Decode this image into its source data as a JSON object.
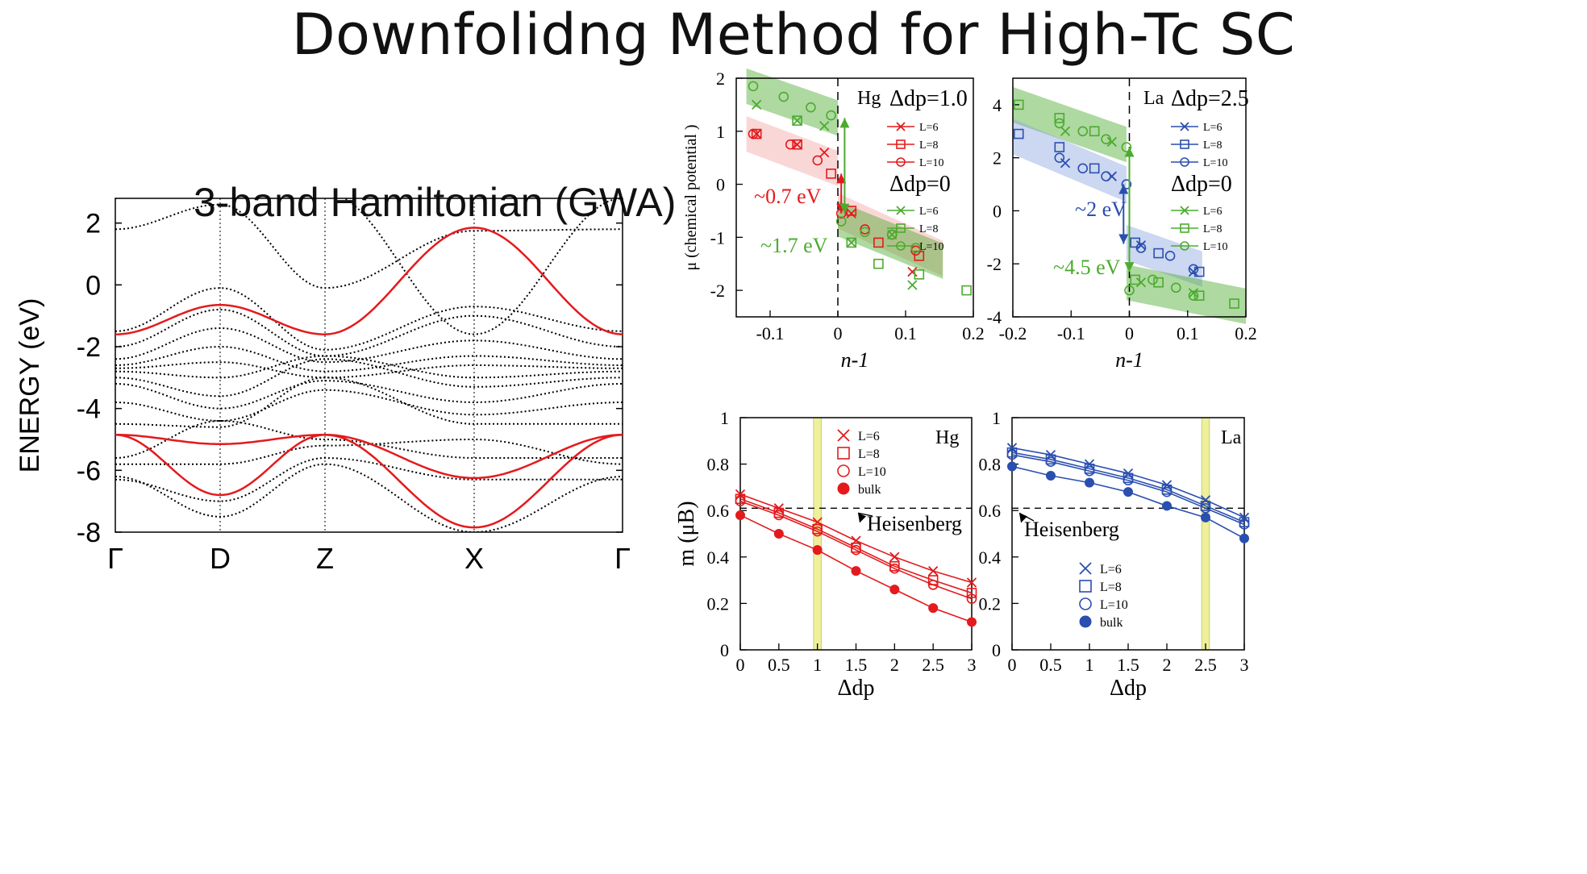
{
  "page": {
    "title": "Downfolidng Method for High-Tc SC"
  },
  "chart_data": [
    {
      "type": "line",
      "title": "3-band Hamiltonian (GWA)",
      "ylabel": "ENERGY (eV)",
      "xlabel": "",
      "k_points": [
        "Γ",
        "D",
        "Z",
        "X",
        "Γ"
      ],
      "ylim": [
        -8,
        2.8
      ],
      "yticks": [
        2,
        0,
        -2,
        -4,
        -6,
        -8
      ],
      "red_bands": [
        {
          "name": "",
          "k": [
            0,
            1,
            2,
            3,
            4
          ],
          "values": [
            -1.6,
            -0.65,
            -1.6,
            1.85,
            -1.6
          ]
        },
        {
          "name": "",
          "k": [
            0,
            1,
            2,
            3,
            4
          ],
          "values": [
            -4.85,
            -5.15,
            -4.85,
            -6.25,
            -4.85
          ]
        },
        {
          "name": "",
          "k": [
            0,
            1,
            2,
            3,
            4
          ],
          "values": [
            -4.85,
            -6.8,
            -4.85,
            -7.85,
            -4.85
          ]
        }
      ],
      "dotted_bands": [
        {
          "k": [
            0,
            1,
            2,
            3,
            4
          ],
          "values": [
            2.8,
            4.5,
            3.0,
            -1.6,
            2.8
          ]
        },
        {
          "k": [
            0,
            1,
            2,
            3,
            4
          ],
          "values": [
            1.8,
            2.6,
            -0.1,
            1.75,
            1.8
          ]
        },
        {
          "k": [
            0,
            1,
            2,
            3,
            4
          ],
          "values": [
            -1.5,
            -0.1,
            -2.1,
            -0.7,
            -1.5
          ]
        },
        {
          "k": [
            0,
            1,
            2,
            3,
            4
          ],
          "values": [
            -2.0,
            -0.8,
            -2.3,
            -1.0,
            -2.0
          ]
        },
        {
          "k": [
            0,
            1,
            2,
            3,
            4
          ],
          "values": [
            -2.4,
            -1.4,
            -2.5,
            -1.8,
            -2.4
          ]
        },
        {
          "k": [
            0,
            1,
            2,
            3,
            4
          ],
          "values": [
            -2.6,
            -2.0,
            -2.8,
            -2.3,
            -2.6
          ]
        },
        {
          "k": [
            0,
            1,
            2,
            3,
            4
          ],
          "values": [
            -2.7,
            -2.5,
            -3.0,
            -2.6,
            -2.7
          ]
        },
        {
          "k": [
            0,
            1,
            2,
            3,
            4
          ],
          "values": [
            -2.8,
            -3.0,
            -2.3,
            -3.0,
            -2.8
          ]
        },
        {
          "k": [
            0,
            1,
            2,
            3,
            4
          ],
          "values": [
            -3.0,
            -3.6,
            -2.4,
            -3.3,
            -3.0
          ]
        },
        {
          "k": [
            0,
            1,
            2,
            3,
            4
          ],
          "values": [
            -3.2,
            -4.0,
            -3.1,
            -3.8,
            -3.2
          ]
        },
        {
          "k": [
            0,
            1,
            2,
            3,
            4
          ],
          "values": [
            -3.8,
            -4.4,
            -3.4,
            -4.2,
            -3.8
          ]
        },
        {
          "k": [
            0,
            1,
            2,
            3,
            4
          ],
          "values": [
            -4.5,
            -4.6,
            -3.0,
            -4.5,
            -4.5
          ]
        },
        {
          "k": [
            0,
            1,
            2,
            3,
            4
          ],
          "values": [
            -5.6,
            -4.4,
            -5.0,
            -5.6,
            -5.6
          ]
        },
        {
          "k": [
            0,
            1,
            2,
            3,
            4
          ],
          "values": [
            -5.8,
            -5.8,
            -5.2,
            -5.0,
            -5.8
          ]
        },
        {
          "k": [
            0,
            1,
            2,
            3,
            4
          ],
          "values": [
            -6.3,
            -7.0,
            -5.6,
            -6.3,
            -6.3
          ]
        },
        {
          "k": [
            0,
            1,
            2,
            3,
            4
          ],
          "values": [
            -6.2,
            -7.5,
            -5.8,
            -8.0,
            -6.2
          ]
        }
      ]
    },
    {
      "type": "scatter",
      "panel": "Hg",
      "ylabel": "μ (chemical potential )",
      "xlabel": "n-1",
      "xlim": [
        -0.15,
        0.2
      ],
      "ylim": [
        -2.5,
        2
      ],
      "xticks": [
        "-0.1",
        "0",
        "0.1",
        "0.2"
      ],
      "yticks": [
        "2",
        "1",
        "0",
        "-1",
        "-2"
      ],
      "legend_title_1": "Δdp=1.0",
      "legend_title_2": "Δdp=0",
      "legend": [
        "L=6",
        "L=8",
        "L=10"
      ],
      "annotations": [
        "~0.7 eV",
        "~1.7 eV"
      ],
      "series": [
        {
          "name": "L=6",
          "group": "Δdp=1.0",
          "marker": "x",
          "x": [
            -0.12,
            -0.06,
            -0.02,
            0.02,
            0.11
          ],
          "y": [
            0.95,
            0.75,
            0.6,
            -0.55,
            -1.65
          ]
        },
        {
          "name": "L=8",
          "group": "Δdp=1.0",
          "marker": "s",
          "x": [
            -0.12,
            -0.06,
            -0.01,
            0.02,
            0.06,
            0.12
          ],
          "y": [
            0.95,
            0.75,
            0.2,
            -0.5,
            -1.1,
            -1.35
          ]
        },
        {
          "name": "L=10",
          "group": "Δdp=1.0",
          "marker": "o",
          "x": [
            -0.125,
            -0.07,
            -0.03,
            0.005,
            0.04,
            0.08,
            0.115
          ],
          "y": [
            0.95,
            0.75,
            0.45,
            -0.55,
            -0.85,
            -0.95,
            -1.25
          ]
        },
        {
          "name": "L=6",
          "group": "Δdp=0",
          "marker": "x",
          "x": [
            -0.12,
            -0.06,
            -0.02,
            0.02,
            0.08,
            0.11
          ],
          "y": [
            1.5,
            1.2,
            1.1,
            -1.1,
            -0.95,
            -1.9
          ]
        },
        {
          "name": "L=8",
          "group": "Δdp=0",
          "marker": "s",
          "x": [
            -0.06,
            0.02,
            0.06,
            0.12,
            0.19
          ],
          "y": [
            1.2,
            -1.1,
            -1.5,
            -1.7,
            -2.0
          ]
        },
        {
          "name": "L=10",
          "group": "Δdp=0",
          "marker": "o",
          "x": [
            -0.125,
            -0.08,
            -0.04,
            -0.01,
            0.005,
            0.04,
            0.08,
            0.115
          ],
          "y": [
            1.85,
            1.65,
            1.45,
            1.3,
            -0.7,
            -0.9,
            -0.95,
            -1.2
          ]
        }
      ]
    },
    {
      "type": "scatter",
      "panel": "La",
      "ylabel": "",
      "xlabel": "n-1",
      "xlim": [
        -0.2,
        0.2
      ],
      "ylim": [
        -4,
        5
      ],
      "xticks": [
        "-0.2",
        "-0.1",
        "0",
        "0.1",
        "0.2"
      ],
      "yticks": [
        "4",
        "2",
        "0",
        "-2",
        "-4"
      ],
      "legend_title_1": "Δdp=2.5",
      "legend_title_2": "Δdp=0",
      "legend": [
        "L=6",
        "L=8",
        "L=10"
      ],
      "annotations": [
        "~2 eV",
        "~4.5 eV"
      ],
      "series": [
        {
          "name": "L=6",
          "group": "Δdp=2.5",
          "marker": "x",
          "x": [
            -0.11,
            -0.03,
            0.02,
            0.11
          ],
          "y": [
            1.8,
            1.3,
            -1.3,
            -2.3
          ]
        },
        {
          "name": "L=8",
          "group": "Δdp=2.5",
          "marker": "s",
          "x": [
            -0.19,
            -0.12,
            -0.06,
            0.01,
            0.05,
            0.12
          ],
          "y": [
            2.9,
            2.4,
            1.6,
            -1.2,
            -1.6,
            -2.3
          ]
        },
        {
          "name": "L=10",
          "group": "Δdp=2.5",
          "marker": "o",
          "x": [
            -0.12,
            -0.08,
            -0.04,
            -0.005,
            0.02,
            0.07,
            0.11
          ],
          "y": [
            2.0,
            1.6,
            1.3,
            1.0,
            -1.4,
            -1.7,
            -2.2
          ]
        },
        {
          "name": "L=6",
          "group": "Δdp=0",
          "marker": "x",
          "x": [
            -0.11,
            -0.03,
            0.02,
            0.11
          ],
          "y": [
            3.0,
            2.6,
            -2.7,
            -3.1
          ]
        },
        {
          "name": "L=8",
          "group": "Δdp=0",
          "marker": "s",
          "x": [
            -0.19,
            -0.12,
            -0.06,
            0.01,
            0.05,
            0.12,
            0.18
          ],
          "y": [
            4.0,
            3.5,
            3.0,
            -2.6,
            -2.7,
            -3.2,
            -3.5
          ]
        },
        {
          "name": "L=10",
          "group": "Δdp=0",
          "marker": "o",
          "x": [
            -0.12,
            -0.08,
            -0.04,
            -0.005,
            0.0,
            0.04,
            0.08,
            0.11
          ],
          "y": [
            3.3,
            3.0,
            2.7,
            2.4,
            -3.0,
            -2.6,
            -2.9,
            -3.2
          ]
        }
      ]
    },
    {
      "type": "line",
      "panel": "Hg",
      "ylabel": "m (μB)",
      "xlabel": "Δdp",
      "xlim": [
        0,
        3
      ],
      "ylim": [
        0,
        1
      ],
      "xticks": [
        "0",
        "0.5",
        "1",
        "1.5",
        "2",
        "2.5",
        "3"
      ],
      "yticks": [
        "1",
        "0.8",
        "0.6",
        "0.4",
        "0.2",
        "0"
      ],
      "annotation": "Heisenberg",
      "heisenberg": 0.61,
      "highlight_x": [
        0.95,
        1.05
      ],
      "categories": [
        0,
        0.5,
        1,
        1.5,
        2,
        2.5,
        3
      ],
      "series": [
        {
          "name": "L=6",
          "marker": "x",
          "values": [
            0.67,
            0.61,
            0.55,
            0.47,
            0.4,
            0.34,
            0.29
          ]
        },
        {
          "name": "L=8",
          "marker": "s",
          "values": [
            0.65,
            0.59,
            0.52,
            0.44,
            0.36,
            0.3,
            0.245
          ]
        },
        {
          "name": "L=10",
          "marker": "o",
          "values": [
            0.64,
            0.58,
            0.51,
            0.43,
            0.35,
            0.28,
            0.22
          ]
        },
        {
          "name": "bulk",
          "marker": "fill",
          "values": [
            0.58,
            0.5,
            0.43,
            0.34,
            0.26,
            0.18,
            0.12
          ]
        }
      ]
    },
    {
      "type": "line",
      "panel": "La",
      "ylabel": "",
      "xlabel": "Δdp",
      "xlim": [
        0,
        3
      ],
      "ylim": [
        0,
        1
      ],
      "xticks": [
        "0",
        "0.5",
        "1",
        "1.5",
        "2",
        "2.5",
        "3"
      ],
      "yticks": [
        "1",
        "0.8",
        "0.6",
        "0.4",
        "0.2",
        "0"
      ],
      "annotation": "Heisenberg",
      "heisenberg": 0.61,
      "highlight_x": [
        2.45,
        2.55
      ],
      "categories": [
        0,
        0.5,
        1,
        1.5,
        2,
        2.5,
        3
      ],
      "series": [
        {
          "name": "L=6",
          "marker": "x",
          "values": [
            0.87,
            0.84,
            0.8,
            0.76,
            0.71,
            0.645,
            0.57
          ]
        },
        {
          "name": "L=8",
          "marker": "s",
          "values": [
            0.85,
            0.82,
            0.78,
            0.74,
            0.69,
            0.62,
            0.55
          ]
        },
        {
          "name": "L=10",
          "marker": "o",
          "values": [
            0.84,
            0.81,
            0.77,
            0.73,
            0.68,
            0.61,
            0.54
          ]
        },
        {
          "name": "bulk",
          "marker": "fill",
          "values": [
            0.79,
            0.75,
            0.72,
            0.68,
            0.62,
            0.57,
            0.48
          ]
        }
      ]
    }
  ],
  "colors": {
    "red": "#e41a1c",
    "green": "#4cab2e",
    "blue": "#2a4fb0",
    "black": "#111111",
    "highlight_yellow": "#eef09a"
  }
}
